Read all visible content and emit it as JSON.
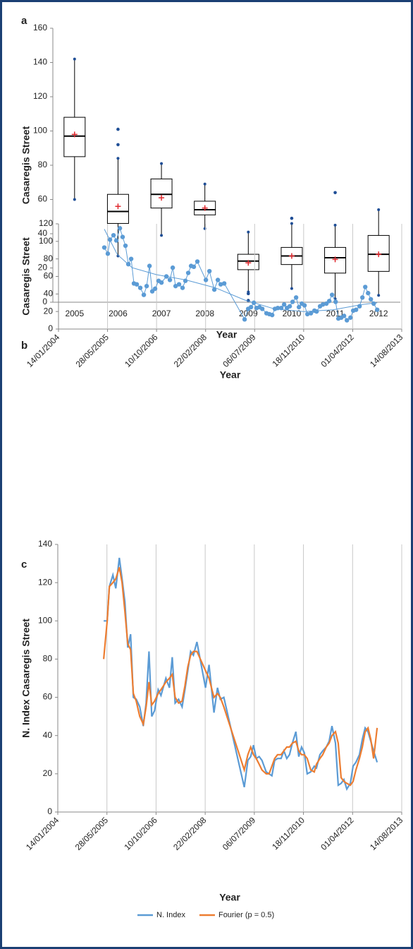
{
  "chart_data": [
    {
      "type": "box",
      "panel": "a",
      "ylabel": "Casaregis Street",
      "xlabel": "Year",
      "categories": [
        "2005",
        "2006",
        "2007",
        "2008",
        "2009",
        "2010",
        "2011",
        "2012"
      ],
      "min": [
        60,
        27,
        39,
        43,
        6,
        8,
        2,
        4
      ],
      "q1": [
        85,
        46,
        55,
        51,
        19,
        22,
        17,
        18
      ],
      "median": [
        97,
        53,
        63,
        54,
        24,
        27,
        26,
        28
      ],
      "q3": [
        108,
        63,
        72,
        59,
        28,
        32,
        32,
        39
      ],
      "max": [
        142,
        84,
        81,
        69,
        41,
        46,
        45,
        54
      ],
      "mean": [
        98,
        56,
        61,
        55,
        23,
        27,
        25,
        28
      ],
      "outliers": [
        [],
        [
          92,
          101
        ],
        [],
        [],
        [
          5,
          1
        ],
        [
          49
        ],
        [
          64
        ],
        []
      ],
      "color": "#1f4e96",
      "mean_color": "#e0282e",
      "ylim": [
        0,
        160
      ],
      "yticks": [
        0,
        20,
        40,
        60,
        80,
        100,
        120,
        140,
        160
      ]
    },
    {
      "type": "scatterline",
      "panel": "b",
      "ylabel": "Casaregis Street",
      "xlabel": "Year",
      "x": [
        38467,
        38503,
        38525,
        38561,
        38590,
        38626,
        38654,
        38683,
        38712,
        38741,
        38769,
        38798,
        38834,
        38870,
        38899,
        38928,
        38956,
        38985,
        39021,
        39050,
        39100,
        39136,
        39165,
        39194,
        39229,
        39265,
        39294,
        39323,
        39352,
        39380,
        39416,
        39503,
        39539,
        39589,
        39625,
        39654,
        39690,
        39898,
        39934,
        39963,
        39992,
        40020,
        40049,
        40078,
        40121,
        40150,
        40179,
        40207,
        40236,
        40272,
        40301,
        40330,
        40358,
        40387,
        40423,
        40452,
        40481,
        40509,
        40538,
        40574,
        40610,
        40632,
        40667,
        40696,
        40732,
        40761,
        40790,
        40826,
        40854,
        40883,
        40912,
        40941,
        40977,
        41005,
        41034,
        41070,
        41099,
        41128,
        41157,
        41185,
        41214,
        41250
      ],
      "series": [
        {
          "color": "#5b9bd5",
          "values": [
            93,
            86,
            102,
            107,
            101,
            115,
            105,
            95,
            74,
            80,
            52,
            51,
            47,
            39,
            49,
            72,
            43,
            46,
            55,
            53,
            60,
            56,
            70,
            49,
            51,
            47,
            55,
            64,
            72,
            71,
            77,
            56,
            66,
            45,
            56,
            51,
            52,
            11,
            23,
            25,
            30,
            24,
            25,
            23,
            18,
            17,
            16,
            23,
            24,
            24,
            28,
            24,
            26,
            31,
            36,
            25,
            29,
            27,
            17,
            18,
            21,
            20,
            26,
            28,
            29,
            32,
            39,
            31,
            12,
            13,
            15,
            10,
            13,
            21,
            22,
            26,
            36,
            48,
            41,
            34,
            29,
            22
          ]
        }
      ],
      "trend": {
        "color": "#5b9bd5",
        "x": [
          38467,
          38600,
          38750,
          39000,
          39300,
          39600,
          39900,
          40200,
          40500,
          40800,
          41100,
          41250
        ],
        "values": [
          114,
          85,
          70,
          62,
          56,
          47,
          33,
          23,
          20,
          22,
          28,
          30
        ]
      },
      "xlim": [
        38000,
        41500
      ],
      "xticks": [
        {
          "value": 38000,
          "label": "14/01/2004"
        },
        {
          "value": 38500,
          "label": "28/05/2005"
        },
        {
          "value": 39000,
          "label": "10/10/2006"
        },
        {
          "value": 39500,
          "label": "22/02/2008"
        },
        {
          "value": 40000,
          "label": "06/07/2009"
        },
        {
          "value": 40500,
          "label": "18/11/2010"
        },
        {
          "value": 41000,
          "label": "01/04/2012"
        },
        {
          "value": 41500,
          "label": "14/08/2013"
        }
      ],
      "ylim": [
        0,
        120
      ],
      "yticks": [
        0,
        20,
        40,
        60,
        80,
        100,
        120
      ],
      "grid": "x"
    },
    {
      "type": "line",
      "panel": "c",
      "ylabel": "N. Index Casaregis Street",
      "xlabel": "Year",
      "x": [
        38467,
        38503,
        38525,
        38561,
        38590,
        38626,
        38654,
        38683,
        38712,
        38741,
        38769,
        38798,
        38834,
        38870,
        38899,
        38928,
        38956,
        38985,
        39021,
        39050,
        39100,
        39136,
        39165,
        39194,
        39229,
        39265,
        39294,
        39323,
        39352,
        39380,
        39416,
        39503,
        39539,
        39589,
        39625,
        39654,
        39690,
        39898,
        39934,
        39963,
        39992,
        40020,
        40049,
        40078,
        40121,
        40150,
        40179,
        40207,
        40236,
        40272,
        40301,
        40330,
        40358,
        40387,
        40423,
        40452,
        40481,
        40509,
        40538,
        40574,
        40610,
        40632,
        40667,
        40696,
        40732,
        40761,
        40790,
        40826,
        40854,
        40883,
        40912,
        40941,
        40977,
        41005,
        41034,
        41070,
        41099,
        41128,
        41157,
        41185,
        41214,
        41250
      ],
      "series": [
        {
          "name": "N. Index",
          "color": "#5b9bd5",
          "values": [
            100,
            100,
            118,
            124,
            117,
            133,
            122,
            110,
            86,
            93,
            60,
            59,
            55,
            45,
            57,
            84,
            50,
            53,
            64,
            61,
            70,
            65,
            81,
            57,
            59,
            55,
            64,
            74,
            84,
            82,
            89,
            65,
            77,
            52,
            65,
            59,
            60,
            13,
            27,
            29,
            35,
            28,
            29,
            27,
            21,
            20,
            19,
            27,
            28,
            28,
            32,
            28,
            30,
            36,
            42,
            29,
            34,
            31,
            20,
            21,
            24,
            23,
            30,
            32,
            34,
            37,
            45,
            36,
            14,
            15,
            17,
            12,
            15,
            24,
            26,
            30,
            38,
            44,
            42,
            37,
            32,
            26
          ]
        },
        {
          "name": "Fourier (p = 0.5)",
          "color": "#ed7d31",
          "values": [
            80,
            100,
            118,
            120,
            122,
            128,
            120,
            105,
            88,
            85,
            62,
            58,
            50,
            46,
            55,
            68,
            56,
            58,
            62,
            64,
            68,
            70,
            72,
            60,
            57,
            58,
            66,
            76,
            82,
            84,
            84,
            74,
            70,
            60,
            62,
            60,
            55,
            22,
            30,
            34,
            30,
            28,
            25,
            22,
            20,
            20,
            24,
            28,
            30,
            30,
            32,
            34,
            34,
            36,
            37,
            32,
            30,
            30,
            28,
            22,
            21,
            25,
            28,
            30,
            34,
            36,
            40,
            42,
            36,
            18,
            16,
            15,
            14,
            16,
            22,
            28,
            34,
            42,
            44,
            38,
            28,
            44
          ]
        }
      ],
      "xlim": [
        38000,
        41500
      ],
      "xticks": [
        {
          "value": 38000,
          "label": "14/01/2004"
        },
        {
          "value": 38500,
          "label": "28/05/2005"
        },
        {
          "value": 39000,
          "label": "10/10/2006"
        },
        {
          "value": 39500,
          "label": "22/02/2008"
        },
        {
          "value": 40000,
          "label": "06/07/2009"
        },
        {
          "value": 40500,
          "label": "18/11/2010"
        },
        {
          "value": 41000,
          "label": "01/04/2012"
        },
        {
          "value": 41500,
          "label": "14/08/2013"
        }
      ],
      "ylim": [
        0,
        140
      ],
      "yticks": [
        0,
        20,
        40,
        60,
        80,
        100,
        120,
        140
      ],
      "grid": "x"
    }
  ]
}
